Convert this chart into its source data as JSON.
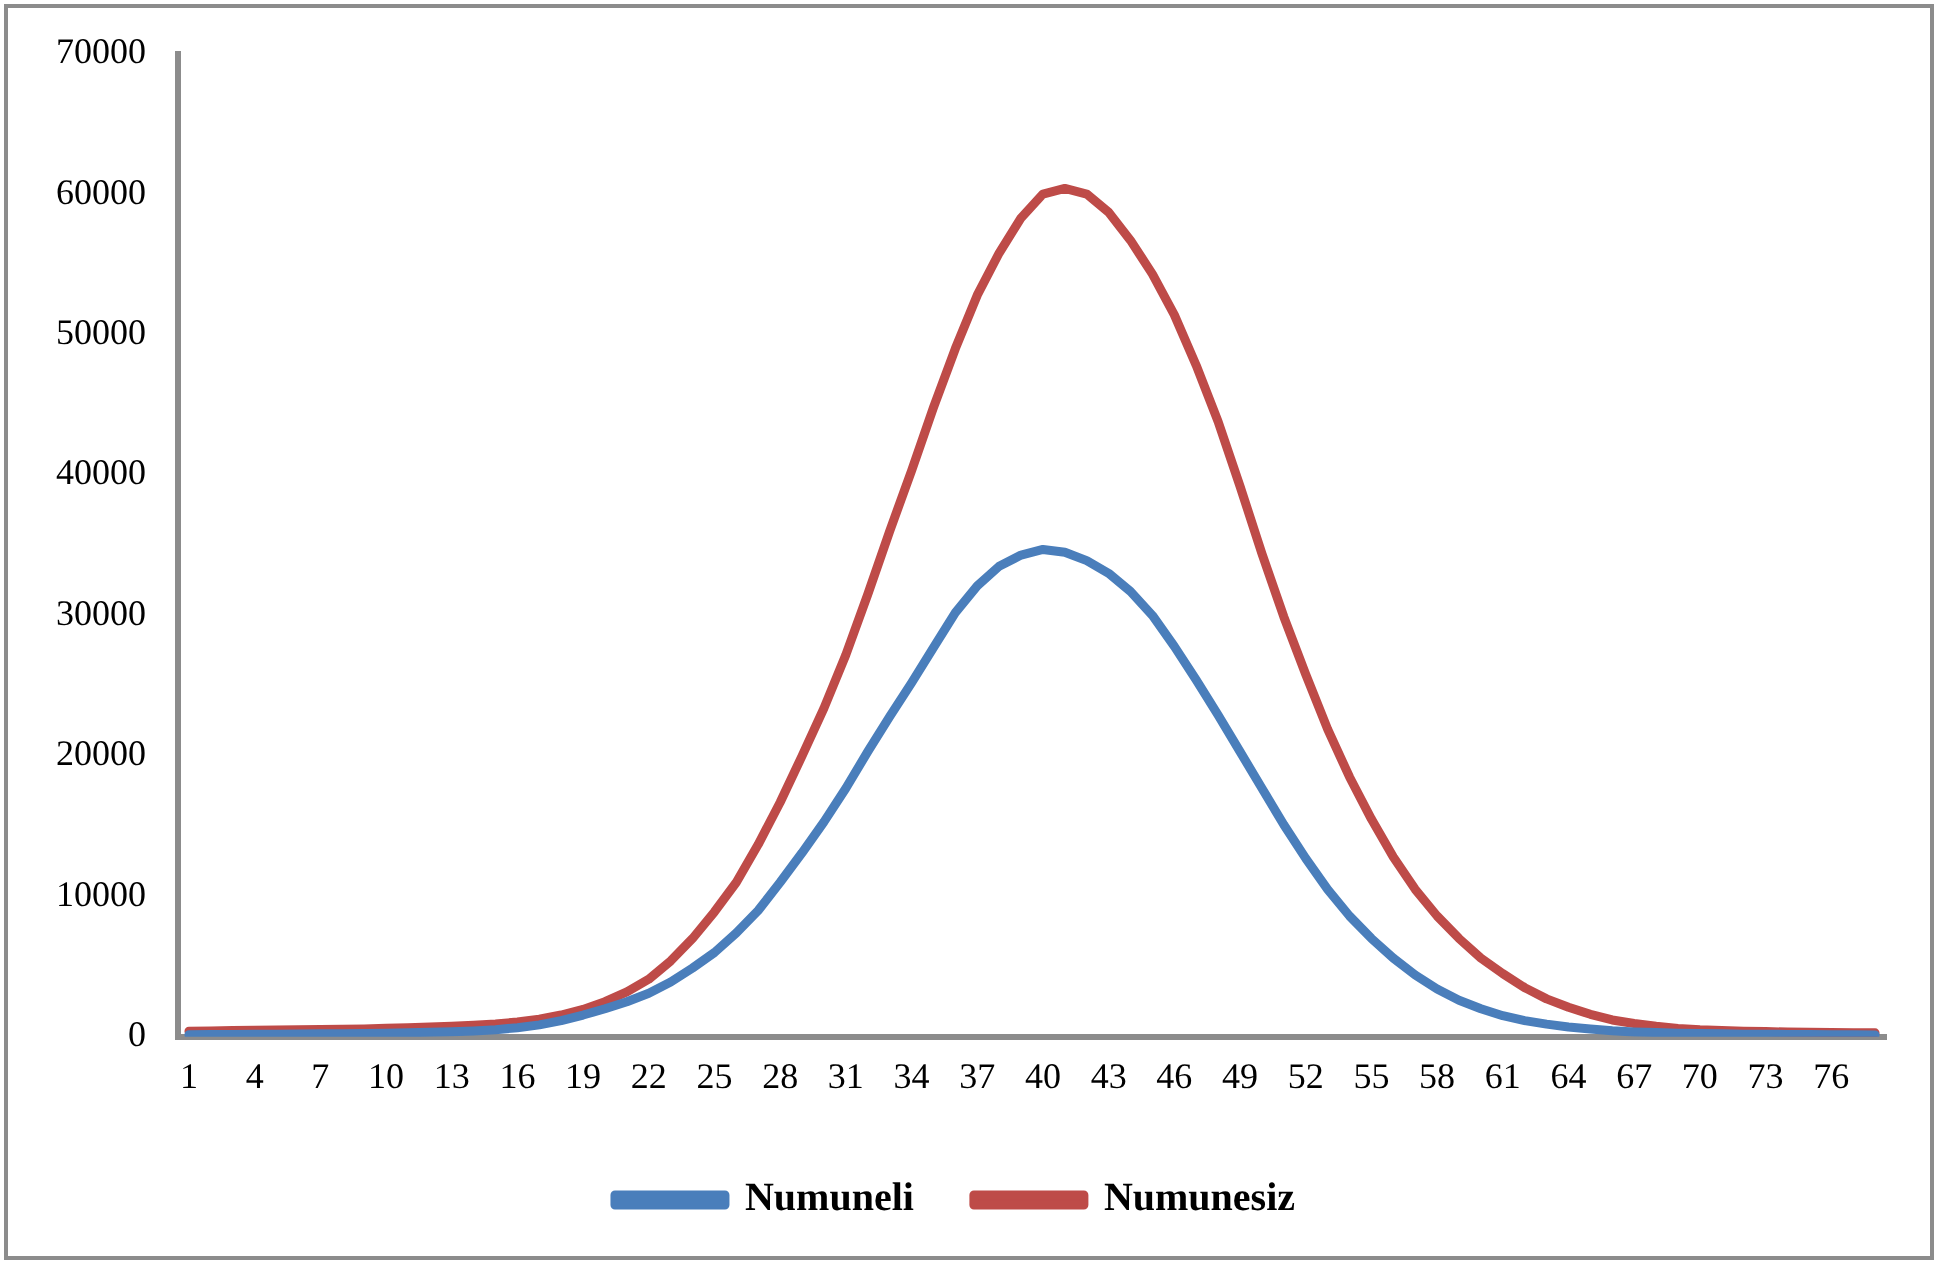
{
  "chart_data": {
    "type": "line",
    "categories": [
      "1",
      null,
      null,
      "4",
      null,
      null,
      "7",
      null,
      null,
      "10",
      null,
      null,
      "13",
      null,
      null,
      "16",
      null,
      null,
      "19",
      null,
      null,
      "22",
      null,
      null,
      "25",
      null,
      null,
      "28",
      null,
      null,
      "31",
      null,
      null,
      "34",
      null,
      null,
      "37",
      null,
      null,
      "40",
      null,
      null,
      "43",
      null,
      null,
      "46",
      null,
      null,
      "49",
      null,
      null,
      "52",
      null,
      null,
      "55",
      null,
      null,
      "58",
      null,
      null,
      "61",
      null,
      null,
      "64",
      null,
      null,
      "67",
      null,
      null,
      "70",
      null,
      null,
      "73",
      null,
      null,
      "76",
      null,
      null
    ],
    "series": [
      {
        "name": "Numuneli",
        "color": "#4a7ebb",
        "values": [
          150,
          160,
          170,
          180,
          190,
          200,
          210,
          220,
          240,
          260,
          290,
          320,
          360,
          420,
          500,
          650,
          850,
          1150,
          1550,
          2000,
          2500,
          3100,
          3900,
          4900,
          6000,
          7400,
          9000,
          11000,
          13100,
          15300,
          17700,
          20300,
          22800,
          25200,
          27700,
          30200,
          32100,
          33500,
          34300,
          34700,
          34500,
          33900,
          33000,
          31700,
          30000,
          27800,
          25400,
          22900,
          20300,
          17700,
          15100,
          12700,
          10500,
          8600,
          7000,
          5600,
          4400,
          3400,
          2600,
          2000,
          1500,
          1150,
          900,
          700,
          550,
          430,
          350,
          300,
          260,
          230,
          210,
          190,
          180,
          170,
          160,
          150,
          140,
          130
        ]
      },
      {
        "name": "Numunesiz",
        "color": "#be4b48",
        "values": [
          400,
          420,
          440,
          460,
          480,
          500,
          520,
          540,
          560,
          600,
          650,
          700,
          760,
          830,
          920,
          1050,
          1250,
          1550,
          1950,
          2500,
          3200,
          4100,
          5400,
          7000,
          8900,
          11000,
          13700,
          16700,
          20000,
          23400,
          27200,
          31500,
          36000,
          40300,
          44800,
          49000,
          52800,
          55800,
          58300,
          60000,
          60400,
          60000,
          58700,
          56700,
          54300,
          51400,
          47800,
          43800,
          39200,
          34400,
          29900,
          25800,
          21900,
          18500,
          15500,
          12800,
          10500,
          8600,
          7000,
          5600,
          4500,
          3500,
          2700,
          2100,
          1600,
          1200,
          950,
          750,
          600,
          500,
          450,
          400,
          370,
          340,
          320,
          300,
          290,
          280
        ]
      }
    ],
    "ylim": [
      0,
      70000
    ],
    "yticks": [
      0,
      10000,
      20000,
      30000,
      40000,
      50000,
      60000,
      70000
    ],
    "grid": false,
    "legend": "bottom",
    "marker": "none",
    "line_style": "solid"
  }
}
